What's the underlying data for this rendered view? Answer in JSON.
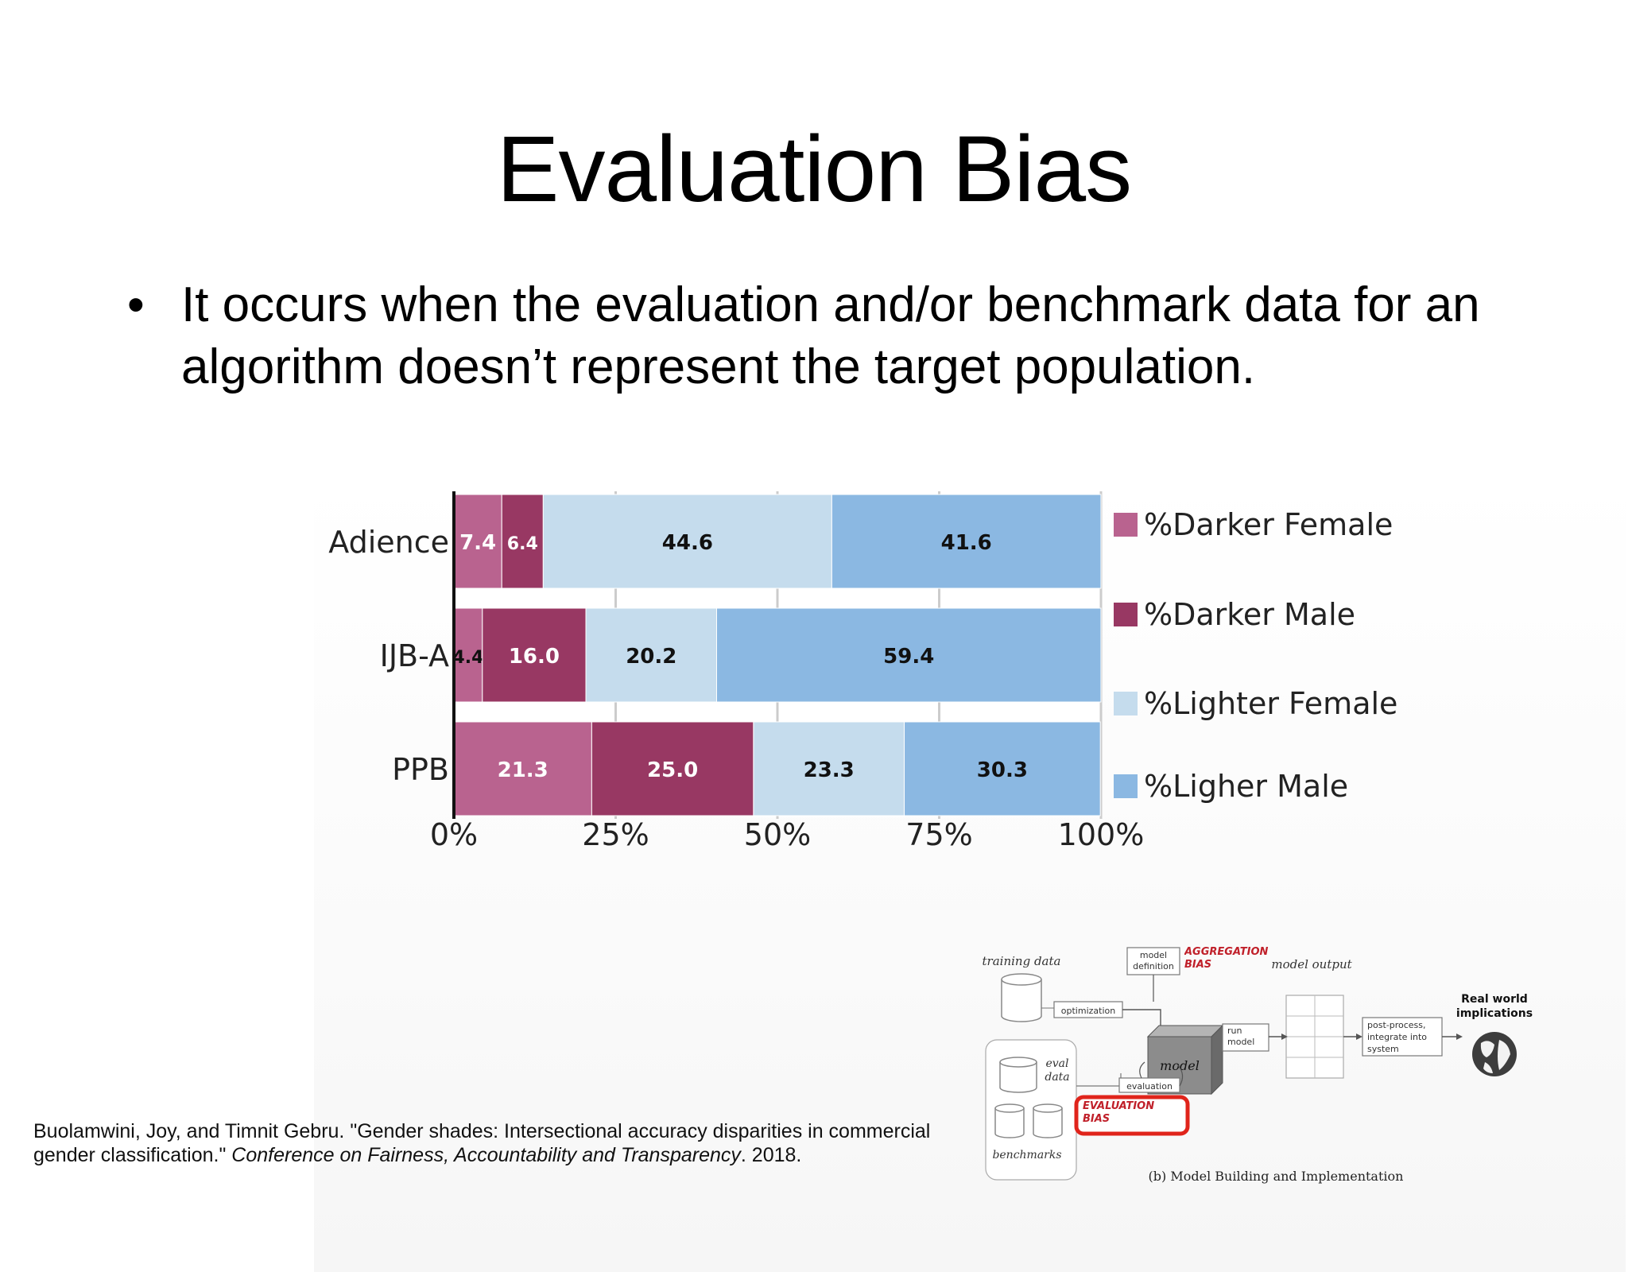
{
  "slide": {
    "title": "Evaluation Bias",
    "bullet": "It occurs when the evaluation and/or benchmark data for an algorithm doesn’t represent the target population.",
    "bullet_symbol": "•"
  },
  "chart_data": {
    "type": "bar",
    "orientation": "horizontal",
    "stacked": true,
    "categories": [
      "Adience",
      "IJB-A",
      "PPB"
    ],
    "series": [
      {
        "name": "%Darker Female",
        "color": "#b9638f",
        "values": [
          7.4,
          4.4,
          21.3
        ]
      },
      {
        "name": "%Darker Male",
        "color": "#983863",
        "values": [
          6.4,
          16.0,
          25.0
        ]
      },
      {
        "name": "%Lighter Female",
        "color": "#c5dced",
        "values": [
          44.6,
          20.2,
          23.3
        ]
      },
      {
        "name": "%Ligher Male",
        "color": "#8bb8e2",
        "values": [
          41.6,
          59.4,
          30.3
        ]
      }
    ],
    "data_labels": [
      [
        "7.4",
        "6.4",
        "44.6",
        "41.6"
      ],
      [
        "4.4",
        "16.0",
        "20.2",
        "59.4"
      ],
      [
        "21.3",
        "25.0",
        "23.3",
        "30.3"
      ]
    ],
    "xlim": [
      0,
      100
    ],
    "xticks": [
      "0%",
      "25%",
      "50%",
      "75%",
      "100%"
    ],
    "grid": true,
    "legend": "right"
  },
  "diagram": {
    "training_data": "training data",
    "model_definition": "model definition",
    "aggregation_bias": "AGGREGATION BIAS",
    "model_output": "model output",
    "optimization": "optimization",
    "model": "model",
    "run_model": "run model",
    "post_process": "post-process, integrate into system",
    "real_world": "Real world implications",
    "eval_data": "eval data",
    "evaluation": "evaluation",
    "evaluation_bias": "EVALUATION BIAS",
    "benchmarks": "benchmarks",
    "caption": "(b) Model Building and Implementation"
  },
  "citation": {
    "text_before": "Buolamwini, Joy, and Timnit Gebru. \"Gender shades: Intersectional accuracy disparities in commercial gender classification.\" ",
    "venue": "Conference on Fairness, Accountability and Transparency",
    "text_after": ". 2018."
  },
  "colors": {
    "highlight_red": "#e0241b",
    "axis": "#111111",
    "gridline": "#cccccc"
  }
}
